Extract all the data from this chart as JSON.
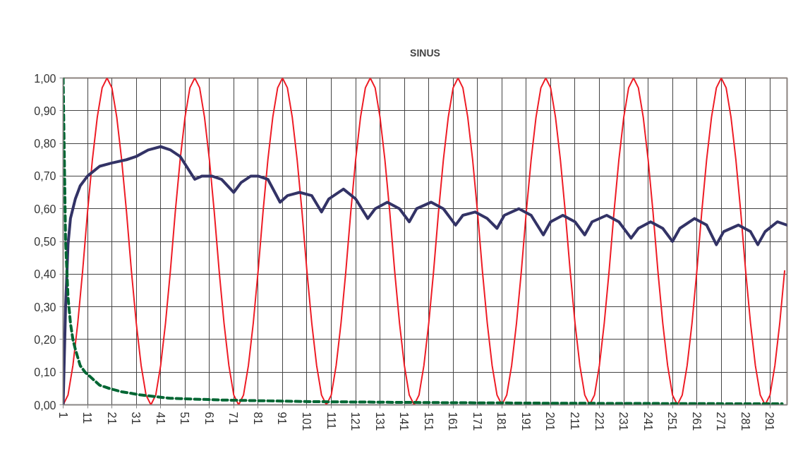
{
  "chart_data": {
    "type": "line",
    "title": "SINUS",
    "x": [
      1,
      3,
      5,
      7,
      9,
      11,
      13,
      15,
      17,
      19,
      21,
      23,
      25,
      27,
      29,
      31,
      33,
      35,
      37,
      39,
      41,
      43,
      45,
      47,
      49,
      51,
      53,
      55,
      57,
      59,
      61,
      63,
      65,
      67,
      69,
      71,
      73,
      75,
      77,
      79,
      81,
      83,
      85,
      87,
      89,
      91,
      93,
      95,
      97,
      99,
      101,
      103,
      105,
      107,
      109,
      111,
      113,
      115,
      117,
      119,
      121,
      123,
      125,
      127,
      129,
      131,
      133,
      135,
      137,
      139,
      141,
      143,
      145,
      147,
      149,
      151,
      153,
      155,
      157,
      159,
      161,
      163,
      165,
      167,
      169,
      171,
      173,
      175,
      177,
      179,
      181,
      183,
      185,
      187,
      189,
      191,
      193,
      195,
      197,
      199,
      201,
      203,
      205,
      207,
      209,
      211,
      213,
      215,
      217,
      219,
      221,
      223,
      225,
      227,
      229,
      231,
      233,
      235,
      237,
      239,
      241,
      243,
      245,
      247,
      249,
      251,
      253,
      255,
      257,
      259,
      261,
      263,
      265,
      267,
      269,
      271,
      273,
      275,
      277,
      279,
      281,
      283,
      285,
      287,
      289,
      291,
      293,
      295,
      297
    ],
    "series": [
      {
        "color": "#ee1c25",
        "line_style": "solid",
        "values": [
          0,
          0.03,
          0.12,
          0.25,
          0.41,
          0.59,
          0.75,
          0.88,
          0.97,
          1,
          0.97,
          0.88,
          0.75,
          0.59,
          0.41,
          0.25,
          0.12,
          0.03,
          0,
          0.03,
          0.12,
          0.25,
          0.41,
          0.59,
          0.75,
          0.88,
          0.97,
          1,
          0.97,
          0.88,
          0.75,
          0.59,
          0.41,
          0.25,
          0.12,
          0.03,
          0,
          0.03,
          0.12,
          0.25,
          0.41,
          0.59,
          0.75,
          0.88,
          0.97,
          1,
          0.97,
          0.88,
          0.75,
          0.59,
          0.41,
          0.25,
          0.12,
          0.03,
          0,
          0.03,
          0.12,
          0.25,
          0.41,
          0.59,
          0.75,
          0.88,
          0.97,
          1,
          0.97,
          0.88,
          0.75,
          0.59,
          0.41,
          0.25,
          0.12,
          0.03,
          0,
          0.03,
          0.12,
          0.25,
          0.41,
          0.59,
          0.75,
          0.88,
          0.97,
          1,
          0.97,
          0.88,
          0.75,
          0.59,
          0.41,
          0.25,
          0.12,
          0.03,
          0,
          0.03,
          0.12,
          0.25,
          0.41,
          0.59,
          0.75,
          0.88,
          0.97,
          1,
          0.97,
          0.88,
          0.75,
          0.59,
          0.41,
          0.25,
          0.12,
          0.03,
          0,
          0.03,
          0.12,
          0.25,
          0.41,
          0.59,
          0.75,
          0.88,
          0.97,
          1,
          0.97,
          0.88,
          0.75,
          0.59,
          0.41,
          0.25,
          0.12,
          0.03,
          0,
          0.03,
          0.12,
          0.25,
          0.41,
          0.59,
          0.75,
          0.88,
          0.97,
          1,
          0.97,
          0.88,
          0.75,
          0.59,
          0.41,
          0.25,
          0.12,
          0.03,
          0,
          0.03,
          0.12,
          0.25,
          0.41
        ]
      },
      {
        "color": "#333366",
        "line_style": "solid",
        "x": [
          1,
          2,
          3,
          4,
          6,
          8,
          11,
          16,
          21,
          27,
          31,
          36,
          41,
          45,
          49,
          55,
          58,
          62,
          66,
          71,
          74,
          78,
          81,
          85,
          90,
          93,
          98,
          103,
          107,
          110,
          116,
          121,
          126,
          129,
          134,
          139,
          143,
          146,
          152,
          157,
          162,
          165,
          170,
          175,
          179,
          182,
          188,
          193,
          198,
          201,
          206,
          211,
          215,
          218,
          224,
          229,
          234,
          237,
          242,
          247,
          251,
          254,
          260,
          265,
          269,
          272,
          278,
          283,
          286,
          289,
          294,
          298
        ],
        "values": [
          0,
          0.3,
          0.49,
          0.57,
          0.63,
          0.67,
          0.7,
          0.73,
          0.74,
          0.75,
          0.76,
          0.78,
          0.79,
          0.78,
          0.76,
          0.69,
          0.7,
          0.7,
          0.69,
          0.65,
          0.68,
          0.7,
          0.7,
          0.69,
          0.62,
          0.64,
          0.65,
          0.64,
          0.59,
          0.63,
          0.66,
          0.63,
          0.57,
          0.6,
          0.62,
          0.6,
          0.56,
          0.6,
          0.62,
          0.6,
          0.55,
          0.58,
          0.59,
          0.57,
          0.54,
          0.58,
          0.6,
          0.58,
          0.52,
          0.56,
          0.58,
          0.56,
          0.52,
          0.56,
          0.58,
          0.56,
          0.51,
          0.54,
          0.56,
          0.54,
          0.5,
          0.54,
          0.57,
          0.55,
          0.49,
          0.53,
          0.55,
          0.53,
          0.49,
          0.53,
          0.56,
          0.55
        ]
      },
      {
        "color": "#006633",
        "line_style": "dashed",
        "x": [
          1,
          2,
          3,
          4,
          5,
          6,
          8,
          10,
          13,
          16,
          20,
          25,
          33,
          45,
          65,
          100,
          150,
          200,
          296
        ],
        "values": [
          1,
          0.5,
          0.33,
          0.25,
          0.2,
          0.17,
          0.12,
          0.1,
          0.08,
          0.06,
          0.05,
          0.04,
          0.03,
          0.02,
          0.015,
          0.01,
          0.007,
          0.005,
          0.003
        ]
      }
    ],
    "xlim": [
      1,
      298
    ],
    "xticks": [
      1,
      11,
      21,
      31,
      41,
      51,
      61,
      71,
      81,
      91,
      101,
      111,
      121,
      131,
      141,
      151,
      161,
      171,
      181,
      191,
      201,
      211,
      221,
      231,
      241,
      251,
      261,
      271,
      281,
      291
    ],
    "ylim": [
      0,
      1
    ],
    "yticks": [
      {
        "value": 0,
        "label": "0,00"
      },
      {
        "value": 0.1,
        "label": "0,10"
      },
      {
        "value": 0.2,
        "label": "0,20"
      },
      {
        "value": 0.3,
        "label": "0,30"
      },
      {
        "value": 0.4,
        "label": "0,40"
      },
      {
        "value": 0.5,
        "label": "0,50"
      },
      {
        "value": 0.6,
        "label": "0,60"
      },
      {
        "value": 0.7,
        "label": "0,70"
      },
      {
        "value": 0.8,
        "label": "0,80"
      },
      {
        "value": 0.9,
        "label": "0,90"
      },
      {
        "value": 1,
        "label": "1,00"
      }
    ],
    "grid": true,
    "marker": "none"
  }
}
